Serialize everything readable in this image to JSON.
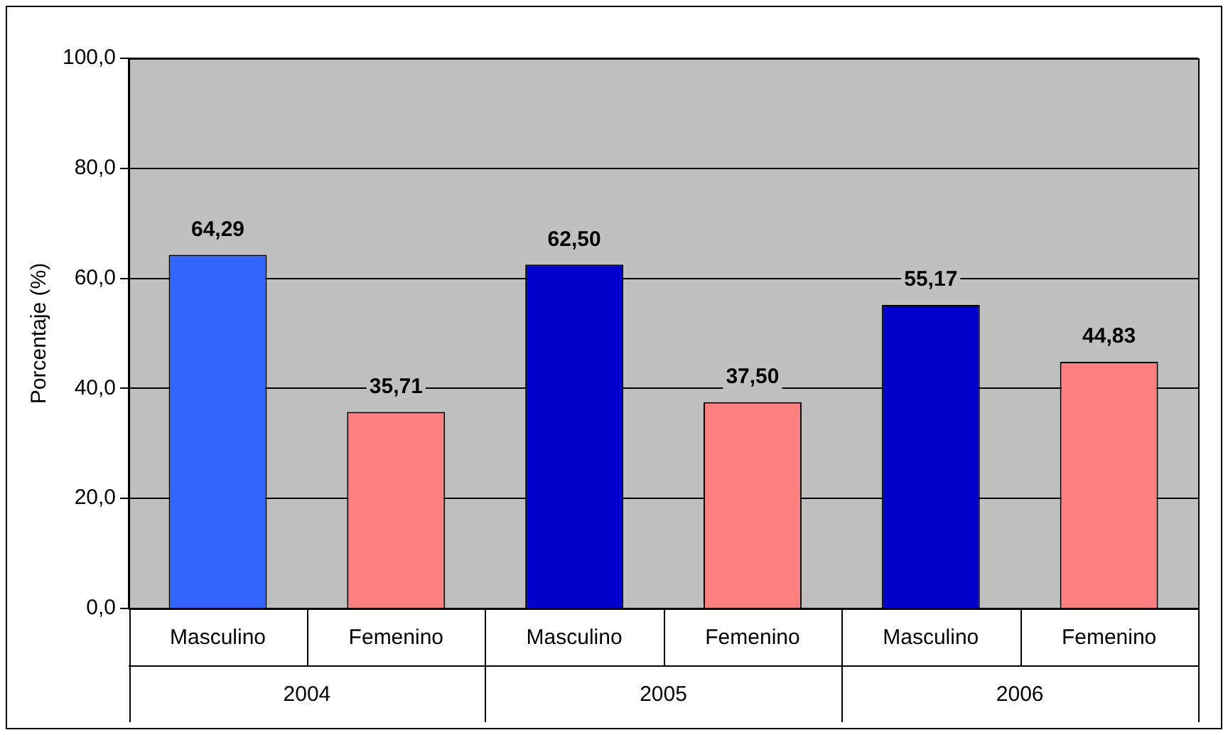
{
  "chart_data": {
    "type": "bar",
    "ylabel": "Porcentaje (%)",
    "categories": [
      "Masculino",
      "Femenino",
      "Masculino",
      "Femenino",
      "Masculino",
      "Femenino"
    ],
    "values": [
      64.29,
      35.71,
      62.5,
      37.5,
      55.17,
      44.83
    ],
    "colors": [
      "#3366ff",
      "#ff8080",
      "#0000cc",
      "#ff8080",
      "#0000cc",
      "#ff8080"
    ],
    "value_labels": [
      "64,29",
      "35,71",
      "62,50",
      "37,50",
      "55,17",
      "44,83"
    ],
    "ylim": [
      0,
      100
    ],
    "yticks": [
      {
        "value": 0,
        "label": "0,0"
      },
      {
        "value": 20,
        "label": "20,0"
      },
      {
        "value": 40,
        "label": "40,0"
      },
      {
        "value": 60,
        "label": "60,0"
      },
      {
        "value": 80,
        "label": "80,0"
      },
      {
        "value": 100,
        "label": "100,0"
      }
    ],
    "grid": "y",
    "annotations": [
      "2004",
      "2005",
      "2006"
    ]
  }
}
